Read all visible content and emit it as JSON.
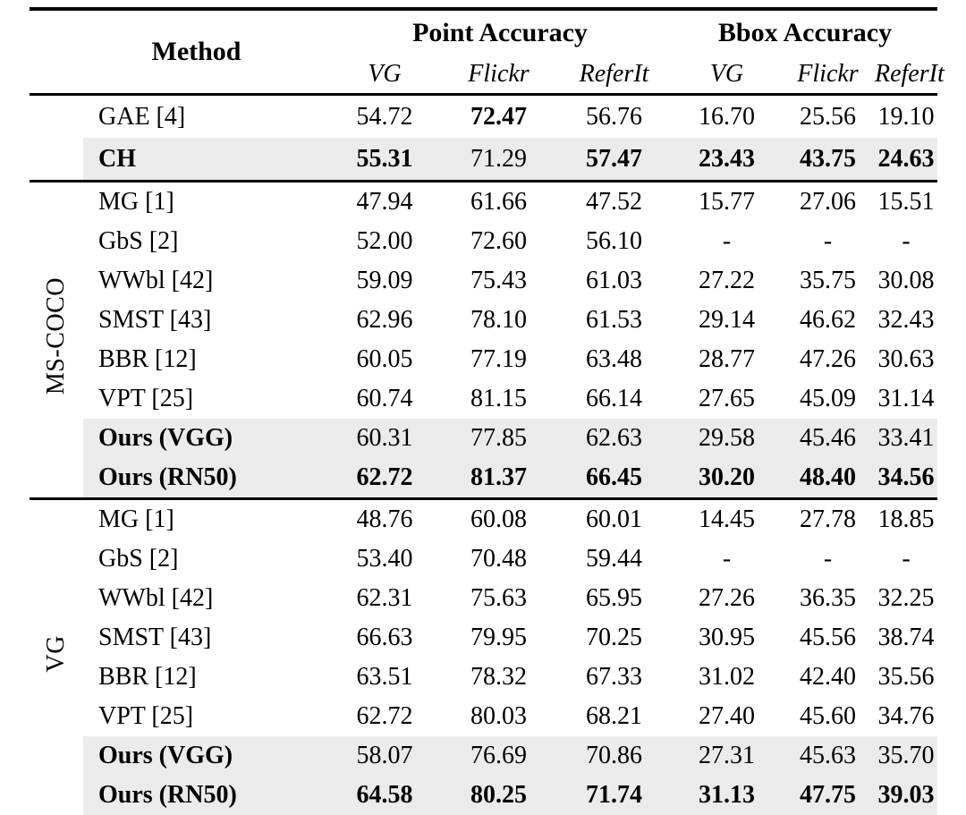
{
  "colors": {
    "background": "#ffffff",
    "text": "#000000",
    "rule": "#000000",
    "highlight_row": "#ebebeb"
  },
  "table": {
    "header": {
      "method_label": "Method",
      "groups": [
        {
          "label": "Point Accuracy",
          "columns": [
            "VG",
            "Flickr",
            "ReferIt"
          ]
        },
        {
          "label": "Bbox Accuracy",
          "columns": [
            "VG",
            "Flickr",
            "ReferIt"
          ]
        }
      ]
    },
    "sections": [
      {
        "group_label": "",
        "rows": [
          {
            "method": "GAE [4]",
            "method_bold": false,
            "highlight": false,
            "values": [
              "54.72",
              "72.47",
              "56.76",
              "16.70",
              "25.56",
              "19.10"
            ],
            "bold": [
              false,
              true,
              false,
              false,
              false,
              false
            ]
          },
          {
            "method": "CH",
            "method_bold": true,
            "highlight": true,
            "values": [
              "55.31",
              "71.29",
              "57.47",
              "23.43",
              "43.75",
              "24.63"
            ],
            "bold": [
              true,
              false,
              true,
              true,
              true,
              true
            ]
          }
        ]
      },
      {
        "group_label": "MS-COCO",
        "rows": [
          {
            "method": "MG [1]",
            "method_bold": false,
            "highlight": false,
            "values": [
              "47.94",
              "61.66",
              "47.52",
              "15.77",
              "27.06",
              "15.51"
            ],
            "bold": [
              false,
              false,
              false,
              false,
              false,
              false
            ]
          },
          {
            "method": "GbS [2]",
            "method_bold": false,
            "highlight": false,
            "values": [
              "52.00",
              "72.60",
              "56.10",
              "-",
              "-",
              "-"
            ],
            "bold": [
              false,
              false,
              false,
              false,
              false,
              false
            ]
          },
          {
            "method": "WWbl [42]",
            "method_bold": false,
            "highlight": false,
            "values": [
              "59.09",
              "75.43",
              "61.03",
              "27.22",
              "35.75",
              "30.08"
            ],
            "bold": [
              false,
              false,
              false,
              false,
              false,
              false
            ]
          },
          {
            "method": "SMST [43]",
            "method_bold": false,
            "highlight": false,
            "values": [
              "62.96",
              "78.10",
              "61.53",
              "29.14",
              "46.62",
              "32.43"
            ],
            "bold": [
              false,
              false,
              false,
              false,
              false,
              false
            ]
          },
          {
            "method": "BBR [12]",
            "method_bold": false,
            "highlight": false,
            "values": [
              "60.05",
              "77.19",
              "63.48",
              "28.77",
              "47.26",
              "30.63"
            ],
            "bold": [
              false,
              false,
              false,
              false,
              false,
              false
            ]
          },
          {
            "method": "VPT [25]",
            "method_bold": false,
            "highlight": false,
            "values": [
              "60.74",
              "81.15",
              "66.14",
              "27.65",
              "45.09",
              "31.14"
            ],
            "bold": [
              false,
              false,
              false,
              false,
              false,
              false
            ]
          },
          {
            "method": "Ours (VGG)",
            "method_bold": true,
            "highlight": true,
            "values": [
              "60.31",
              "77.85",
              "62.63",
              "29.58",
              "45.46",
              "33.41"
            ],
            "bold": [
              false,
              false,
              false,
              false,
              false,
              false
            ]
          },
          {
            "method": "Ours (RN50)",
            "method_bold": true,
            "highlight": true,
            "values": [
              "62.72",
              "81.37",
              "66.45",
              "30.20",
              "48.40",
              "34.56"
            ],
            "bold": [
              true,
              true,
              true,
              true,
              true,
              true
            ]
          }
        ]
      },
      {
        "group_label": "VG",
        "rows": [
          {
            "method": "MG [1]",
            "method_bold": false,
            "highlight": false,
            "values": [
              "48.76",
              "60.08",
              "60.01",
              "14.45",
              "27.78",
              "18.85"
            ],
            "bold": [
              false,
              false,
              false,
              false,
              false,
              false
            ]
          },
          {
            "method": "GbS [2]",
            "method_bold": false,
            "highlight": false,
            "values": [
              "53.40",
              "70.48",
              "59.44",
              "-",
              "-",
              "-"
            ],
            "bold": [
              false,
              false,
              false,
              false,
              false,
              false
            ]
          },
          {
            "method": "WWbl [42]",
            "method_bold": false,
            "highlight": false,
            "values": [
              "62.31",
              "75.63",
              "65.95",
              "27.26",
              "36.35",
              "32.25"
            ],
            "bold": [
              false,
              false,
              false,
              false,
              false,
              false
            ]
          },
          {
            "method": "SMST [43]",
            "method_bold": false,
            "highlight": false,
            "values": [
              "66.63",
              "79.95",
              "70.25",
              "30.95",
              "45.56",
              "38.74"
            ],
            "bold": [
              false,
              false,
              false,
              false,
              false,
              false
            ]
          },
          {
            "method": "BBR [12]",
            "method_bold": false,
            "highlight": false,
            "values": [
              "63.51",
              "78.32",
              "67.33",
              "31.02",
              "42.40",
              "35.56"
            ],
            "bold": [
              false,
              false,
              false,
              false,
              false,
              false
            ]
          },
          {
            "method": "VPT [25]",
            "method_bold": false,
            "highlight": false,
            "values": [
              "62.72",
              "80.03",
              "68.21",
              "27.40",
              "45.60",
              "34.76"
            ],
            "bold": [
              false,
              false,
              false,
              false,
              false,
              false
            ]
          },
          {
            "method": "Ours (VGG)",
            "method_bold": true,
            "highlight": true,
            "values": [
              "58.07",
              "76.69",
              "70.86",
              "27.31",
              "45.63",
              "35.70"
            ],
            "bold": [
              false,
              false,
              false,
              false,
              false,
              false
            ]
          },
          {
            "method": "Ours (RN50)",
            "method_bold": true,
            "highlight": true,
            "values": [
              "64.58",
              "80.25",
              "71.74",
              "31.13",
              "47.75",
              "39.03"
            ],
            "bold": [
              true,
              true,
              true,
              true,
              true,
              true
            ]
          }
        ]
      }
    ]
  }
}
